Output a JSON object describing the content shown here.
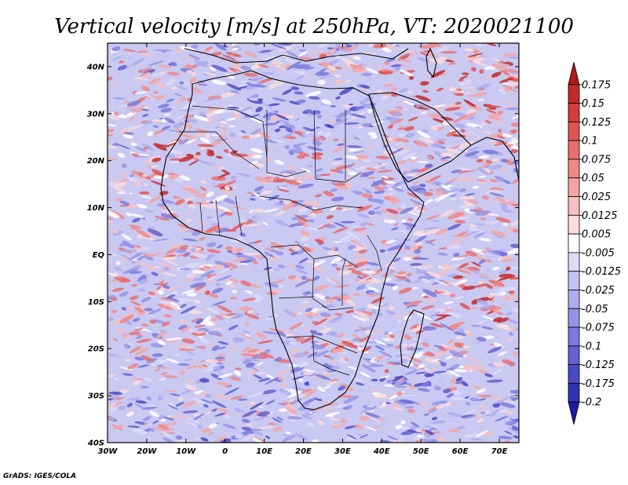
{
  "chart_data": {
    "type": "heatmap",
    "title": "Vertical velocity [m/s] at 250hPa, VT: 2020021100",
    "variable": "Vertical velocity",
    "units": "m/s",
    "level": "250hPa",
    "valid_time": "2020021100",
    "x_axis": {
      "range": [
        -30,
        75
      ],
      "ticks": [
        {
          "value": -30,
          "label": "30W"
        },
        {
          "value": -20,
          "label": "20W"
        },
        {
          "value": -10,
          "label": "10W"
        },
        {
          "value": 0,
          "label": "0"
        },
        {
          "value": 10,
          "label": "10E"
        },
        {
          "value": 20,
          "label": "20E"
        },
        {
          "value": 30,
          "label": "30E"
        },
        {
          "value": 40,
          "label": "40E"
        },
        {
          "value": 50,
          "label": "50E"
        },
        {
          "value": 60,
          "label": "60E"
        },
        {
          "value": 70,
          "label": "70E"
        }
      ]
    },
    "y_axis": {
      "range": [
        -40,
        45
      ],
      "ticks": [
        {
          "value": 40,
          "label": "40N"
        },
        {
          "value": 30,
          "label": "30N"
        },
        {
          "value": 20,
          "label": "20N"
        },
        {
          "value": 10,
          "label": "10N"
        },
        {
          "value": 0,
          "label": "EQ"
        },
        {
          "value": -10,
          "label": "10S"
        },
        {
          "value": -20,
          "label": "20S"
        },
        {
          "value": -30,
          "label": "30S"
        },
        {
          "value": -40,
          "label": "40S"
        }
      ]
    },
    "colorbar": {
      "levels": [
        "0.175",
        "0.15",
        "0.125",
        "0.1",
        "0.075",
        "0.05",
        "0.025",
        "0.0125",
        "0.005",
        "-0.005",
        "-0.0125",
        "-0.025",
        "-0.05",
        "-0.075",
        "-0.1",
        "-0.125",
        "-0.175",
        "-0.2"
      ],
      "colors": [
        "#b01a1a",
        "#c42a2a",
        "#d43c3c",
        "#e05454",
        "#e86e6e",
        "#f08888",
        "#f4a4a4",
        "#f8c0c0",
        "#fcdcdc",
        "#ffffff",
        "#dcdcfa",
        "#c4c4f4",
        "#acacee",
        "#9494e6",
        "#7a7ade",
        "#6262d2",
        "#4a4ac6",
        "#3232b4",
        "#1c1ca0"
      ],
      "extend": "both"
    }
  },
  "credit": "GrADS: IGES/COLA"
}
